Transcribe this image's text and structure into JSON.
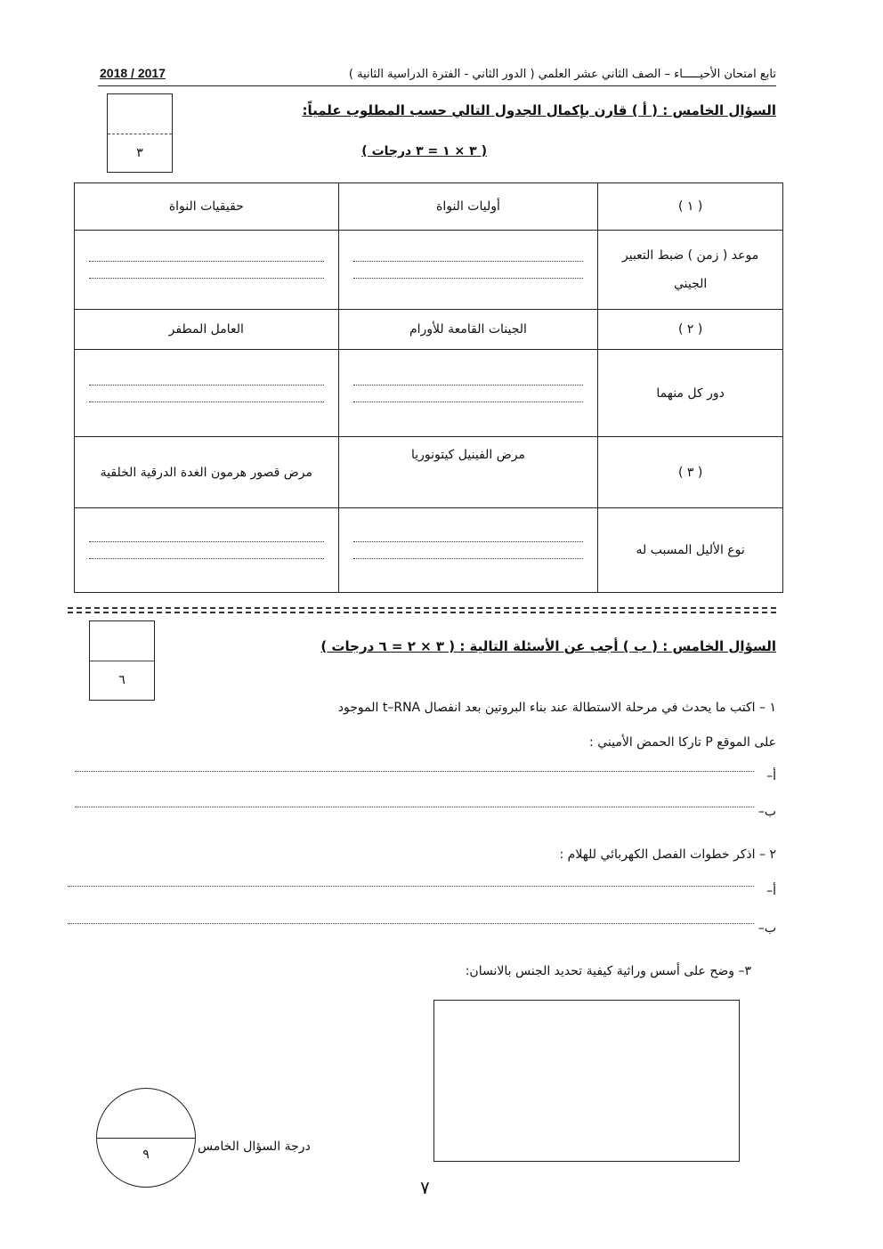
{
  "header": {
    "title": "تابع امتحان الأحيـــــاء – الصف الثاني عشر العلمي ( الدور الثاني - الفترة الدراسية الثانية )",
    "year": "2018 / 2017"
  },
  "part_a": {
    "title": "السؤال الخامس : ( أ ) قارن بإكمال الجدول التالي حسب المطلوب علمياً:",
    "marks": "( ٣ × ١ = ٣ درجات )",
    "score": "٣",
    "table": [
      {
        "label": "( ١ )",
        "col1": "أوليات النواة",
        "col2": "حقيقيات النواة"
      },
      {
        "label": "موعد ( زمن ) ضبط التعبير الجيني",
        "col1": "",
        "col2": ""
      },
      {
        "label": "( ٢ )",
        "col1": "الجينات القامعة للأورام",
        "col2": "العامل المطفر"
      },
      {
        "label": "دور كل منهما",
        "col1": "",
        "col2": ""
      },
      {
        "label": "( ٣ )",
        "col1": "مرض الفينيل كيتونوريا",
        "col2": "مرض قصور هرمون الغدة الدرقية الخلقية"
      },
      {
        "label": "نوع الأليل المسبب له",
        "col1": "",
        "col2": ""
      }
    ]
  },
  "part_b": {
    "title": "السؤال الخامس : ( ب ) أجب عن الأسئلة التالية : ( ٣ × ٢ = ٦ درجات )",
    "score": "٦",
    "q1_line1": "١ – اكتب ما يحدث في مرحلة الاستطالة عند بناء البروتين بعد انفصال t–RNA الموجود",
    "q1_line2": "على الموقع P تاركا الحمض الأميني :",
    "q2": "٢ – اذكر خطوات الفصل الكهربائي للهلام :",
    "q3": "٣– وضح على أسس وراثية كيفية تحديد الجنس بالانسان:",
    "opt_a": "أ–",
    "opt_b": "ب–"
  },
  "footer": {
    "total_label": "درجة السؤال الخامس",
    "total_score": "٩",
    "page_number": "٧"
  }
}
